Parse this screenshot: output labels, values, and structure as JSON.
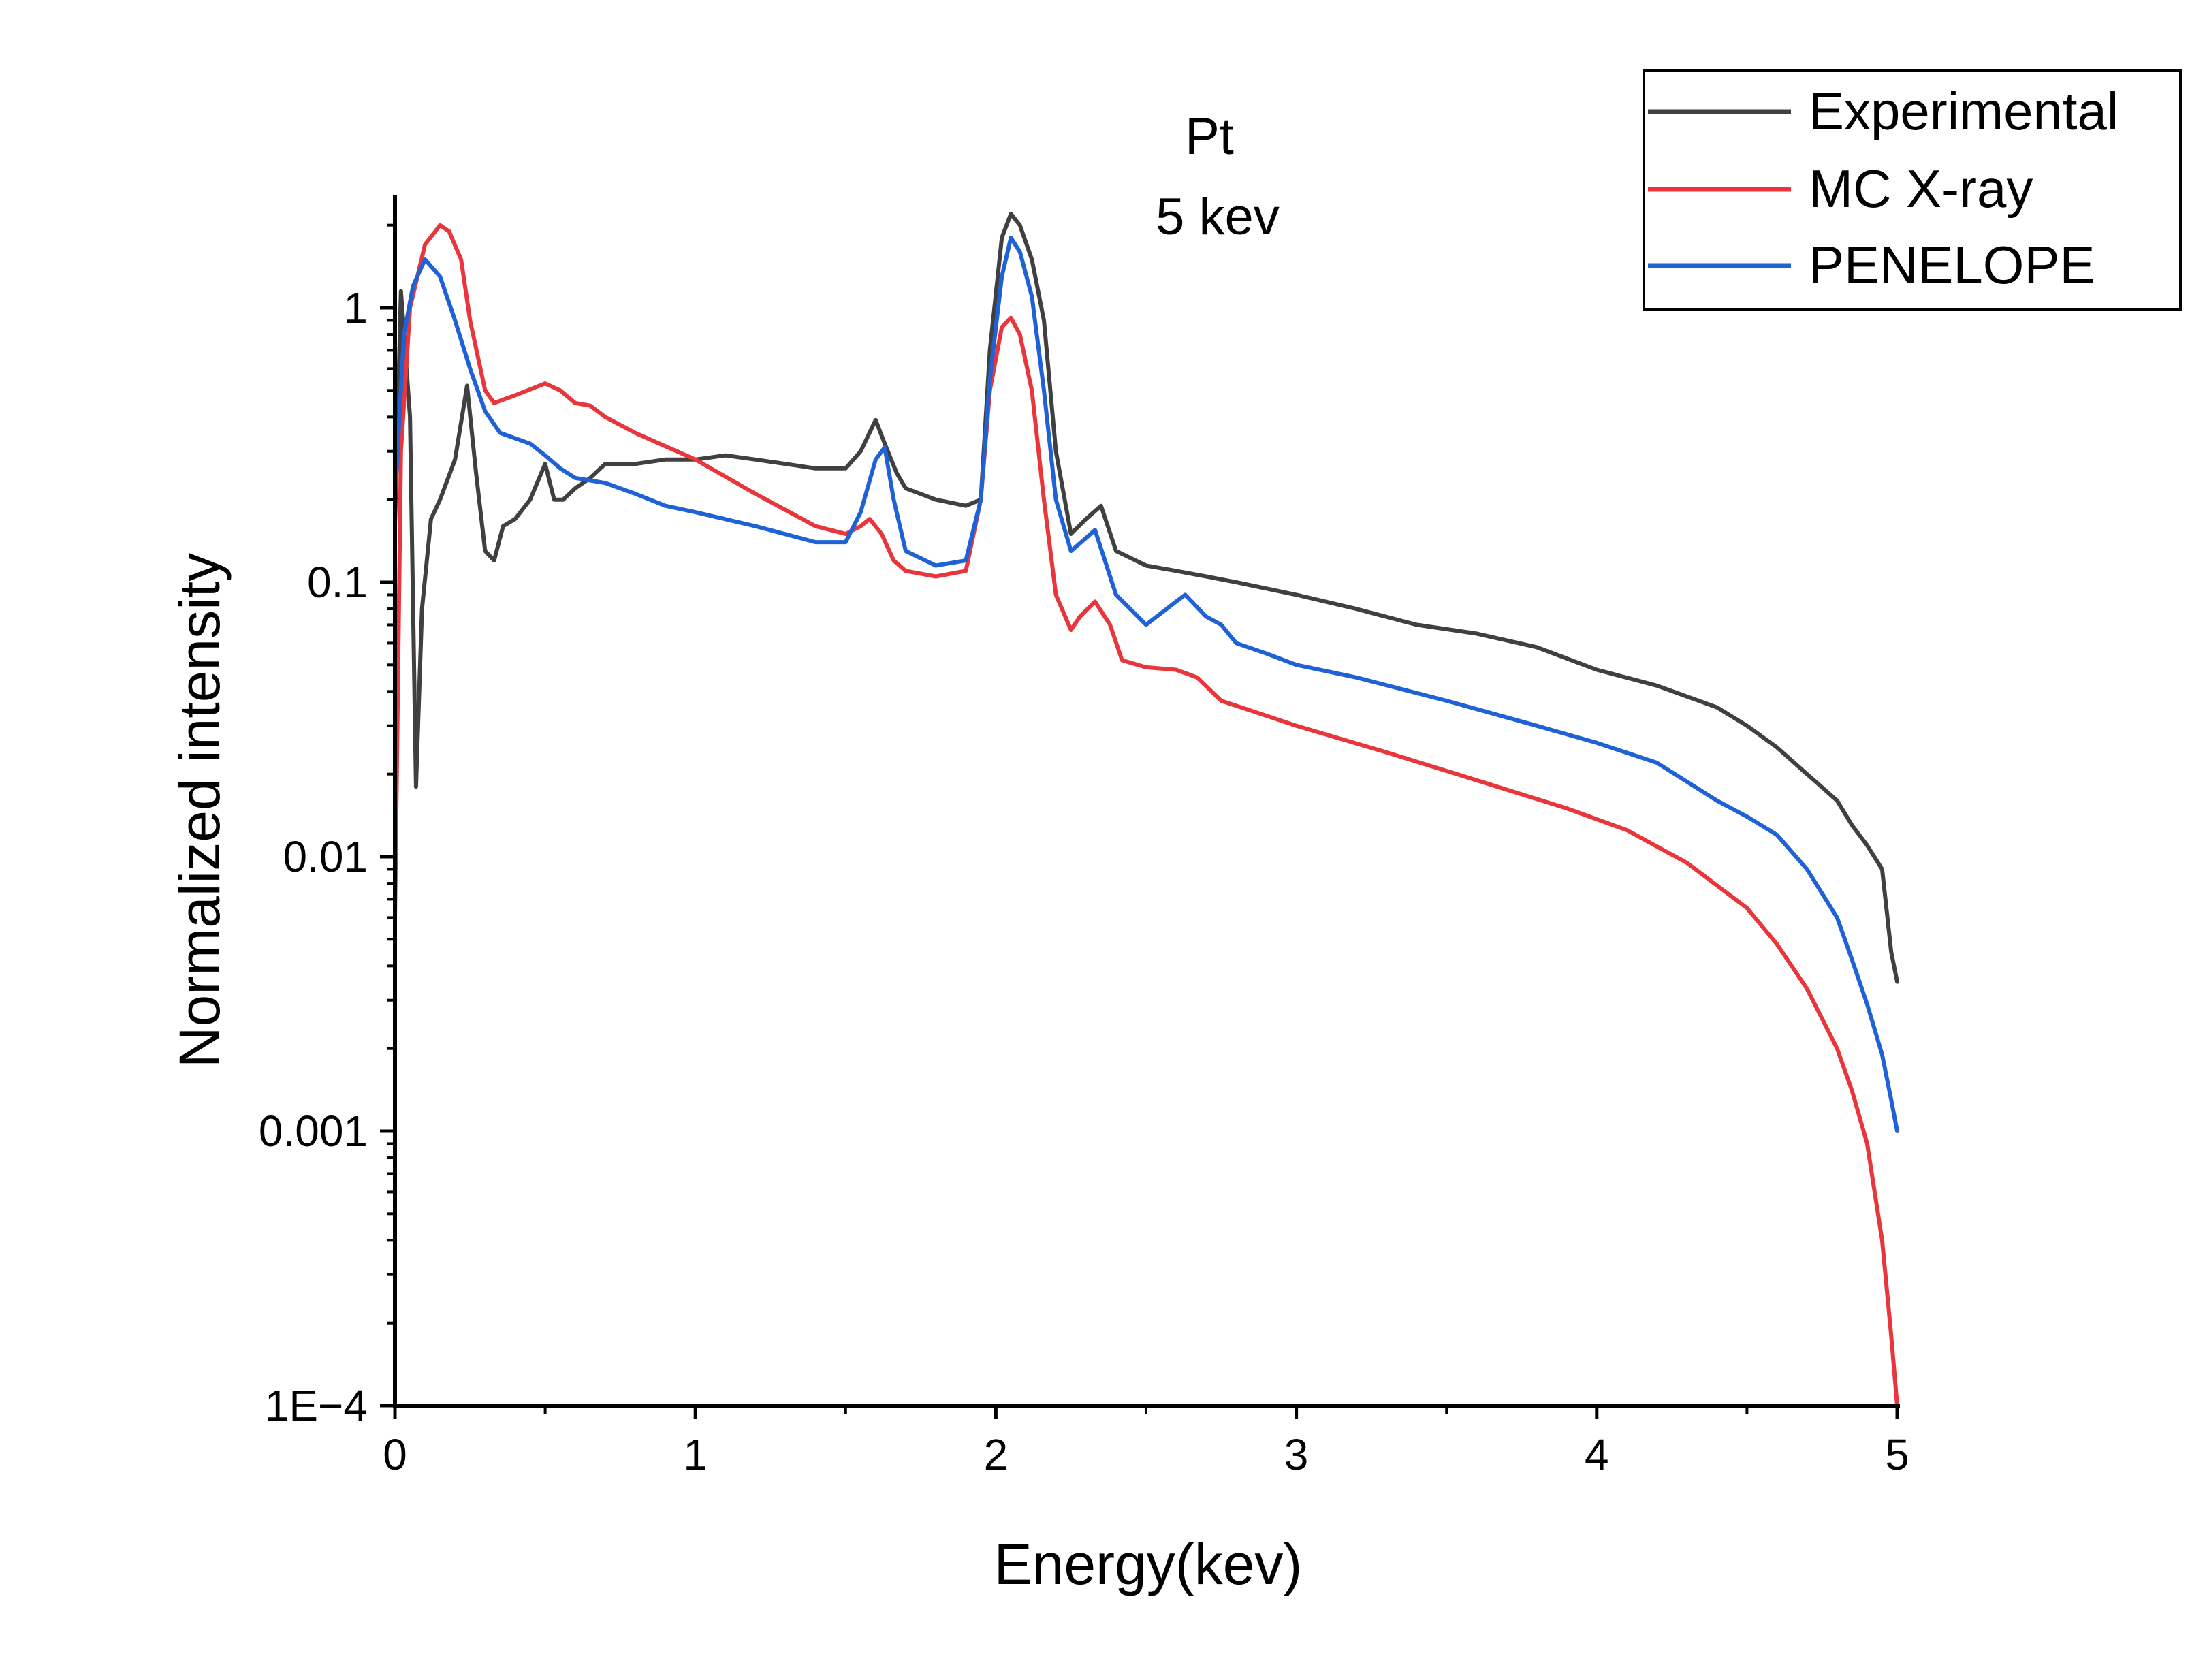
{
  "chart_data": {
    "type": "line",
    "title": "Pt",
    "subtitle": "5 kev",
    "xlabel": "Energy(kev)",
    "ylabel": "Normalized intensity",
    "xlim": [
      0,
      5
    ],
    "ylim": [
      0.0001,
      2.5
    ],
    "yscale": "log",
    "grid": false,
    "legend_position": "top-right",
    "x_ticks": [
      {
        "value": 0,
        "label": "0"
      },
      {
        "value": 1,
        "label": "1"
      },
      {
        "value": 2,
        "label": "2"
      },
      {
        "value": 3,
        "label": "3"
      },
      {
        "value": 4,
        "label": "4"
      },
      {
        "value": 5,
        "label": "5"
      }
    ],
    "y_ticks": [
      {
        "value": 0.0001,
        "label": "1E−4"
      },
      {
        "value": 0.001,
        "label": "0.001"
      },
      {
        "value": 0.01,
        "label": "0.01"
      },
      {
        "value": 0.1,
        "label": "0.1"
      },
      {
        "value": 1,
        "label": "1"
      }
    ],
    "series": [
      {
        "name": "Experimental",
        "color": "#404040",
        "x": [
          0.0,
          0.02,
          0.05,
          0.07,
          0.09,
          0.12,
          0.15,
          0.2,
          0.24,
          0.27,
          0.3,
          0.33,
          0.36,
          0.4,
          0.45,
          0.5,
          0.53,
          0.56,
          0.6,
          0.65,
          0.7,
          0.8,
          0.9,
          1.0,
          1.1,
          1.2,
          1.3,
          1.4,
          1.5,
          1.55,
          1.6,
          1.63,
          1.67,
          1.7,
          1.8,
          1.9,
          1.95,
          1.98,
          2.02,
          2.05,
          2.08,
          2.12,
          2.16,
          2.2,
          2.25,
          2.3,
          2.35,
          2.4,
          2.5,
          2.6,
          2.7,
          2.8,
          3.0,
          3.2,
          3.4,
          3.6,
          3.8,
          4.0,
          4.2,
          4.4,
          4.5,
          4.6,
          4.7,
          4.8,
          4.85,
          4.9,
          4.95,
          4.98,
          5.0
        ],
        "y": [
          0.16,
          1.15,
          0.4,
          0.018,
          0.08,
          0.17,
          0.2,
          0.28,
          0.52,
          0.25,
          0.13,
          0.12,
          0.16,
          0.17,
          0.2,
          0.27,
          0.2,
          0.2,
          0.22,
          0.24,
          0.27,
          0.27,
          0.28,
          0.28,
          0.29,
          0.28,
          0.27,
          0.26,
          0.26,
          0.3,
          0.39,
          0.32,
          0.25,
          0.22,
          0.2,
          0.19,
          0.2,
          0.7,
          1.8,
          2.2,
          2.0,
          1.5,
          0.9,
          0.3,
          0.15,
          0.17,
          0.19,
          0.13,
          0.115,
          0.11,
          0.105,
          0.1,
          0.09,
          0.08,
          0.07,
          0.065,
          0.058,
          0.048,
          0.042,
          0.035,
          0.03,
          0.025,
          0.02,
          0.016,
          0.013,
          0.011,
          0.009,
          0.0045,
          0.0035
        ]
      },
      {
        "name": "MC X-ray",
        "color": "#e8363c",
        "x": [
          0.0,
          0.02,
          0.05,
          0.1,
          0.15,
          0.18,
          0.22,
          0.25,
          0.3,
          0.33,
          0.4,
          0.5,
          0.55,
          0.6,
          0.65,
          0.7,
          0.8,
          1.0,
          1.2,
          1.4,
          1.5,
          1.55,
          1.58,
          1.62,
          1.66,
          1.7,
          1.8,
          1.9,
          1.95,
          1.98,
          2.02,
          2.05,
          2.08,
          2.12,
          2.16,
          2.2,
          2.25,
          2.28,
          2.33,
          2.38,
          2.42,
          2.5,
          2.6,
          2.67,
          2.75,
          3.0,
          3.3,
          3.6,
          3.9,
          4.1,
          4.3,
          4.5,
          4.6,
          4.7,
          4.8,
          4.85,
          4.9,
          4.95,
          4.98,
          5.0
        ],
        "y": [
          0.006,
          0.3,
          1.0,
          1.7,
          2.0,
          1.9,
          1.5,
          0.9,
          0.5,
          0.45,
          0.48,
          0.53,
          0.5,
          0.45,
          0.44,
          0.4,
          0.35,
          0.28,
          0.21,
          0.16,
          0.15,
          0.16,
          0.17,
          0.15,
          0.12,
          0.11,
          0.105,
          0.11,
          0.2,
          0.5,
          0.85,
          0.92,
          0.8,
          0.5,
          0.2,
          0.09,
          0.067,
          0.075,
          0.085,
          0.07,
          0.052,
          0.049,
          0.048,
          0.045,
          0.037,
          0.03,
          0.024,
          0.019,
          0.015,
          0.0125,
          0.0095,
          0.0065,
          0.0048,
          0.0033,
          0.002,
          0.0014,
          0.0009,
          0.0004,
          0.00018,
          0.0001
        ]
      },
      {
        "name": "PENELOPE",
        "color": "#1e62d6",
        "x": [
          0.0,
          0.03,
          0.06,
          0.1,
          0.15,
          0.2,
          0.25,
          0.3,
          0.35,
          0.45,
          0.5,
          0.55,
          0.6,
          0.7,
          0.8,
          0.9,
          1.0,
          1.2,
          1.4,
          1.5,
          1.55,
          1.6,
          1.63,
          1.66,
          1.7,
          1.8,
          1.9,
          1.95,
          1.98,
          2.02,
          2.05,
          2.08,
          2.12,
          2.16,
          2.2,
          2.25,
          2.3,
          2.33,
          2.4,
          2.5,
          2.6,
          2.63,
          2.7,
          2.75,
          2.8,
          2.9,
          3.0,
          3.2,
          3.5,
          3.8,
          4.0,
          4.2,
          4.4,
          4.5,
          4.6,
          4.7,
          4.8,
          4.85,
          4.9,
          4.95,
          4.98,
          5.0
        ],
        "y": [
          0.2,
          0.8,
          1.2,
          1.5,
          1.3,
          0.9,
          0.6,
          0.42,
          0.35,
          0.32,
          0.29,
          0.26,
          0.24,
          0.23,
          0.21,
          0.19,
          0.18,
          0.16,
          0.14,
          0.14,
          0.18,
          0.28,
          0.31,
          0.2,
          0.13,
          0.115,
          0.12,
          0.2,
          0.55,
          1.3,
          1.8,
          1.6,
          1.1,
          0.5,
          0.2,
          0.13,
          0.145,
          0.155,
          0.09,
          0.07,
          0.085,
          0.09,
          0.075,
          0.07,
          0.06,
          0.055,
          0.05,
          0.045,
          0.037,
          0.03,
          0.026,
          0.022,
          0.016,
          0.014,
          0.012,
          0.009,
          0.006,
          0.0042,
          0.0029,
          0.0019,
          0.0013,
          0.001
        ]
      }
    ]
  }
}
